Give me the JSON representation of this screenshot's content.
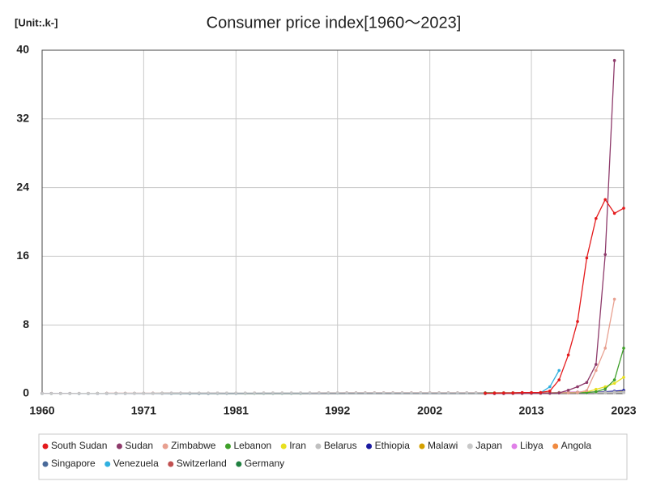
{
  "chart_data": {
    "type": "line",
    "title": "Consumer price index[1960～2023]",
    "unit_label": "[Unit:.k-]",
    "x": [
      1960,
      1961,
      1962,
      1963,
      1964,
      1965,
      1966,
      1967,
      1968,
      1969,
      1970,
      1971,
      1972,
      1973,
      1974,
      1975,
      1976,
      1977,
      1978,
      1979,
      1980,
      1981,
      1982,
      1983,
      1984,
      1985,
      1986,
      1987,
      1988,
      1989,
      1990,
      1991,
      1992,
      1993,
      1994,
      1995,
      1996,
      1997,
      1998,
      1999,
      2000,
      2001,
      2002,
      2003,
      2004,
      2005,
      2006,
      2007,
      2008,
      2009,
      2010,
      2011,
      2012,
      2013,
      2014,
      2015,
      2016,
      2017,
      2018,
      2019,
      2020,
      2021,
      2022,
      2023
    ],
    "xlim": [
      1960,
      2023
    ],
    "xticks": [
      1960,
      1971,
      1981,
      1992,
      2002,
      2013,
      2023
    ],
    "ylim": [
      0,
      40
    ],
    "yticks": [
      0,
      8,
      16,
      24,
      32,
      40
    ],
    "grid": true,
    "series": [
      {
        "name": "South Sudan",
        "color": "#e41a1c",
        "values": [
          null,
          null,
          null,
          null,
          null,
          null,
          null,
          null,
          null,
          null,
          null,
          null,
          null,
          null,
          null,
          null,
          null,
          null,
          null,
          null,
          null,
          null,
          null,
          null,
          null,
          null,
          null,
          null,
          null,
          null,
          null,
          null,
          null,
          null,
          null,
          null,
          null,
          null,
          null,
          null,
          null,
          null,
          null,
          null,
          null,
          null,
          null,
          null,
          0.05,
          0.06,
          0.07,
          0.08,
          0.13,
          0.13,
          0.14,
          0.3,
          1.6,
          4.5,
          8.4,
          15.8,
          20.4,
          22.6,
          21.0,
          21.6
        ]
      },
      {
        "name": "Sudan",
        "color": "#8e3b6b",
        "values": [
          null,
          null,
          null,
          null,
          null,
          null,
          null,
          null,
          null,
          null,
          null,
          null,
          null,
          null,
          null,
          null,
          null,
          null,
          null,
          null,
          null,
          null,
          null,
          null,
          null,
          null,
          null,
          null,
          null,
          null,
          null,
          null,
          null,
          null,
          null,
          null,
          null,
          null,
          null,
          null,
          null,
          null,
          null,
          null,
          null,
          null,
          null,
          null,
          0.01,
          0.01,
          0.01,
          0.02,
          0.02,
          0.03,
          0.04,
          0.04,
          0.08,
          0.4,
          0.8,
          1.3,
          3.4,
          16.2,
          38.8,
          null
        ]
      },
      {
        "name": "Zimbabwe",
        "color": "#e8a090",
        "values": [
          null,
          null,
          null,
          null,
          null,
          null,
          null,
          null,
          null,
          null,
          null,
          null,
          null,
          null,
          null,
          null,
          null,
          null,
          null,
          null,
          null,
          null,
          null,
          null,
          null,
          null,
          null,
          null,
          null,
          null,
          null,
          null,
          null,
          null,
          null,
          null,
          null,
          null,
          null,
          null,
          null,
          null,
          null,
          null,
          null,
          null,
          null,
          null,
          null,
          0.1,
          0.1,
          0.1,
          0.1,
          0.1,
          0.1,
          0.1,
          0.1,
          0.1,
          0.12,
          0.35,
          2.7,
          5.3,
          11.0,
          null
        ]
      },
      {
        "name": "Lebanon",
        "color": "#3fa02a",
        "values": [
          null,
          null,
          null,
          null,
          null,
          null,
          null,
          null,
          null,
          null,
          null,
          null,
          null,
          null,
          null,
          null,
          null,
          null,
          null,
          null,
          null,
          null,
          null,
          null,
          null,
          null,
          null,
          null,
          null,
          null,
          null,
          null,
          null,
          null,
          null,
          null,
          null,
          null,
          null,
          null,
          null,
          null,
          null,
          null,
          null,
          null,
          null,
          null,
          0.08,
          0.09,
          0.1,
          0.1,
          0.1,
          0.11,
          0.1,
          0.1,
          0.1,
          0.11,
          0.12,
          0.12,
          0.22,
          0.55,
          1.6,
          5.3
        ]
      },
      {
        "name": "Iran",
        "color": "#e8e020",
        "values": [
          null,
          null,
          null,
          null,
          null,
          null,
          null,
          null,
          null,
          null,
          null,
          null,
          null,
          null,
          null,
          null,
          null,
          null,
          null,
          null,
          null,
          null,
          null,
          null,
          null,
          null,
          null,
          null,
          null,
          null,
          null,
          null,
          null,
          null,
          null,
          null,
          null,
          null,
          null,
          null,
          null,
          null,
          null,
          null,
          null,
          null,
          null,
          null,
          0.02,
          0.03,
          0.03,
          0.04,
          0.05,
          0.07,
          0.08,
          0.09,
          0.1,
          0.11,
          0.14,
          0.2,
          0.5,
          0.8,
          1.2,
          1.9
        ]
      },
      {
        "name": "Belarus",
        "color": "#c0c0c0",
        "values": [
          null,
          null,
          null,
          null,
          null,
          null,
          null,
          null,
          null,
          null,
          null,
          null,
          null,
          null,
          null,
          null,
          null,
          null,
          null,
          null,
          null,
          null,
          null,
          null,
          null,
          null,
          null,
          null,
          null,
          null,
          null,
          null,
          null,
          null,
          null,
          null,
          null,
          null,
          null,
          null,
          null,
          null,
          null,
          null,
          null,
          null,
          null,
          null,
          0.01,
          0.01,
          0.02,
          0.03,
          0.05,
          0.07,
          0.08,
          0.1,
          0.11,
          0.12,
          0.13,
          0.14,
          0.15,
          0.16,
          0.19,
          0.2
        ]
      },
      {
        "name": "Ethiopia",
        "color": "#1a1aa0",
        "values": [
          null,
          null,
          null,
          null,
          null,
          null,
          null,
          null,
          null,
          null,
          null,
          null,
          null,
          null,
          null,
          null,
          null,
          null,
          null,
          null,
          null,
          null,
          null,
          null,
          null,
          null,
          null,
          null,
          null,
          null,
          null,
          null,
          null,
          null,
          null,
          null,
          null,
          null,
          null,
          null,
          null,
          null,
          null,
          null,
          null,
          null,
          null,
          null,
          0.03,
          0.03,
          0.04,
          0.05,
          0.06,
          0.07,
          0.08,
          0.08,
          0.09,
          0.1,
          0.12,
          0.14,
          0.17,
          0.22,
          0.29,
          0.38
        ]
      },
      {
        "name": "Malawi",
        "color": "#d4a000",
        "values": [
          null,
          null,
          null,
          null,
          null,
          null,
          null,
          null,
          null,
          null,
          null,
          null,
          null,
          null,
          null,
          null,
          null,
          null,
          null,
          null,
          null,
          null,
          null,
          null,
          null,
          null,
          null,
          null,
          null,
          null,
          null,
          null,
          null,
          null,
          null,
          null,
          null,
          null,
          null,
          null,
          null,
          null,
          null,
          null,
          null,
          null,
          null,
          null,
          0.03,
          0.03,
          0.03,
          0.04,
          0.05,
          0.07,
          0.09,
          0.1,
          0.12,
          0.13,
          0.14,
          0.15,
          0.16,
          0.18,
          0.22,
          0.3
        ]
      },
      {
        "name": "Japan",
        "color": "#c8c8c8",
        "values": [
          0.02,
          0.02,
          0.02,
          0.02,
          0.03,
          0.03,
          0.03,
          0.03,
          0.03,
          0.03,
          0.04,
          0.04,
          0.04,
          0.05,
          0.06,
          0.06,
          0.07,
          0.07,
          0.07,
          0.07,
          0.08,
          0.08,
          0.08,
          0.08,
          0.09,
          0.09,
          0.09,
          0.09,
          0.09,
          0.09,
          0.09,
          0.1,
          0.1,
          0.1,
          0.1,
          0.1,
          0.1,
          0.1,
          0.1,
          0.1,
          0.1,
          0.1,
          0.1,
          0.1,
          0.1,
          0.1,
          0.1,
          0.1,
          0.1,
          0.1,
          0.1,
          0.1,
          0.1,
          0.1,
          0.1,
          0.1,
          0.1,
          0.1,
          0.1,
          0.1,
          0.1,
          0.1,
          0.1,
          0.11
        ]
      },
      {
        "name": "Libya",
        "color": "#e080e8",
        "values": [
          null,
          null,
          null,
          null,
          null,
          null,
          null,
          null,
          null,
          null,
          null,
          null,
          null,
          null,
          null,
          null,
          null,
          null,
          null,
          null,
          null,
          null,
          null,
          null,
          null,
          null,
          null,
          null,
          null,
          null,
          null,
          null,
          null,
          null,
          null,
          null,
          null,
          null,
          null,
          null,
          null,
          null,
          null,
          null,
          null,
          null,
          null,
          null,
          0.08,
          0.08,
          0.08,
          0.1,
          0.1,
          0.1,
          0.1,
          0.11,
          0.14,
          0.18,
          0.2,
          0.2,
          0.2,
          0.2,
          0.21,
          0.22
        ]
      },
      {
        "name": "Angola",
        "color": "#f08a40",
        "values": [
          null,
          null,
          null,
          null,
          null,
          null,
          null,
          null,
          null,
          null,
          null,
          null,
          null,
          null,
          null,
          null,
          null,
          null,
          null,
          null,
          null,
          null,
          null,
          null,
          null,
          null,
          null,
          null,
          null,
          null,
          null,
          null,
          null,
          null,
          null,
          null,
          null,
          null,
          null,
          null,
          null,
          null,
          null,
          null,
          null,
          null,
          null,
          null,
          0.02,
          0.02,
          0.03,
          0.03,
          0.04,
          0.04,
          0.04,
          0.05,
          0.07,
          0.09,
          0.11,
          0.13,
          0.15,
          0.18,
          0.22,
          0.3
        ]
      },
      {
        "name": "Singapore",
        "color": "#4a6a9a",
        "values": [
          0.02,
          0.02,
          0.02,
          0.02,
          0.02,
          0.02,
          0.02,
          0.02,
          0.02,
          0.02,
          0.03,
          0.03,
          0.03,
          0.03,
          0.04,
          0.04,
          0.04,
          0.04,
          0.04,
          0.05,
          0.05,
          0.05,
          0.06,
          0.06,
          0.06,
          0.06,
          0.06,
          0.06,
          0.06,
          0.06,
          0.06,
          0.07,
          0.07,
          0.07,
          0.07,
          0.07,
          0.07,
          0.07,
          0.07,
          0.07,
          0.07,
          0.07,
          0.07,
          0.07,
          0.07,
          0.07,
          0.08,
          0.08,
          0.08,
          0.08,
          0.09,
          0.09,
          0.1,
          0.1,
          0.1,
          0.1,
          0.1,
          0.1,
          0.1,
          0.1,
          0.1,
          0.1,
          0.11,
          0.12
        ]
      },
      {
        "name": "Venezuela",
        "color": "#30b0e0",
        "values": [
          null,
          null,
          null,
          null,
          null,
          null,
          null,
          null,
          null,
          null,
          null,
          null,
          null,
          null,
          null,
          null,
          null,
          null,
          null,
          null,
          null,
          null,
          null,
          null,
          null,
          null,
          null,
          null,
          null,
          null,
          null,
          null,
          null,
          null,
          null,
          null,
          null,
          null,
          null,
          null,
          null,
          null,
          null,
          null,
          null,
          null,
          null,
          null,
          0.01,
          0.01,
          0.01,
          0.02,
          0.02,
          0.03,
          0.1,
          0.8,
          2.7,
          null,
          null,
          null,
          null,
          null,
          null,
          null
        ]
      },
      {
        "name": "Switzerland",
        "color": "#c05050",
        "values": [
          0.03,
          0.03,
          0.03,
          0.03,
          0.03,
          0.03,
          0.03,
          0.04,
          0.04,
          0.04,
          0.04,
          0.04,
          0.05,
          0.05,
          0.06,
          0.06,
          0.06,
          0.06,
          0.06,
          0.07,
          0.07,
          0.07,
          0.07,
          0.08,
          0.08,
          0.08,
          0.08,
          0.08,
          0.08,
          0.08,
          0.09,
          0.09,
          0.09,
          0.1,
          0.1,
          0.1,
          0.1,
          0.1,
          0.1,
          0.1,
          0.1,
          0.1,
          0.1,
          0.1,
          0.1,
          0.1,
          0.1,
          0.1,
          0.1,
          0.1,
          0.1,
          0.1,
          0.1,
          0.1,
          0.1,
          0.1,
          0.1,
          0.1,
          0.1,
          0.1,
          0.1,
          0.1,
          0.1,
          0.11
        ]
      },
      {
        "name": "Germany",
        "color": "#208040",
        "values": [
          0.02,
          0.02,
          0.02,
          0.02,
          0.02,
          0.02,
          0.03,
          0.03,
          0.03,
          0.03,
          0.03,
          0.03,
          0.03,
          0.04,
          0.04,
          0.04,
          0.04,
          0.04,
          0.04,
          0.05,
          0.05,
          0.05,
          0.05,
          0.05,
          0.05,
          0.05,
          0.05,
          0.05,
          0.05,
          0.06,
          0.06,
          0.06,
          0.06,
          0.07,
          0.07,
          0.07,
          0.07,
          0.07,
          0.07,
          0.07,
          0.07,
          0.08,
          0.08,
          0.08,
          0.08,
          0.08,
          0.08,
          0.08,
          0.09,
          0.09,
          0.09,
          0.09,
          0.09,
          0.09,
          0.1,
          0.1,
          0.1,
          0.1,
          0.1,
          0.1,
          0.1,
          0.1,
          0.11,
          0.12
        ]
      }
    ]
  }
}
